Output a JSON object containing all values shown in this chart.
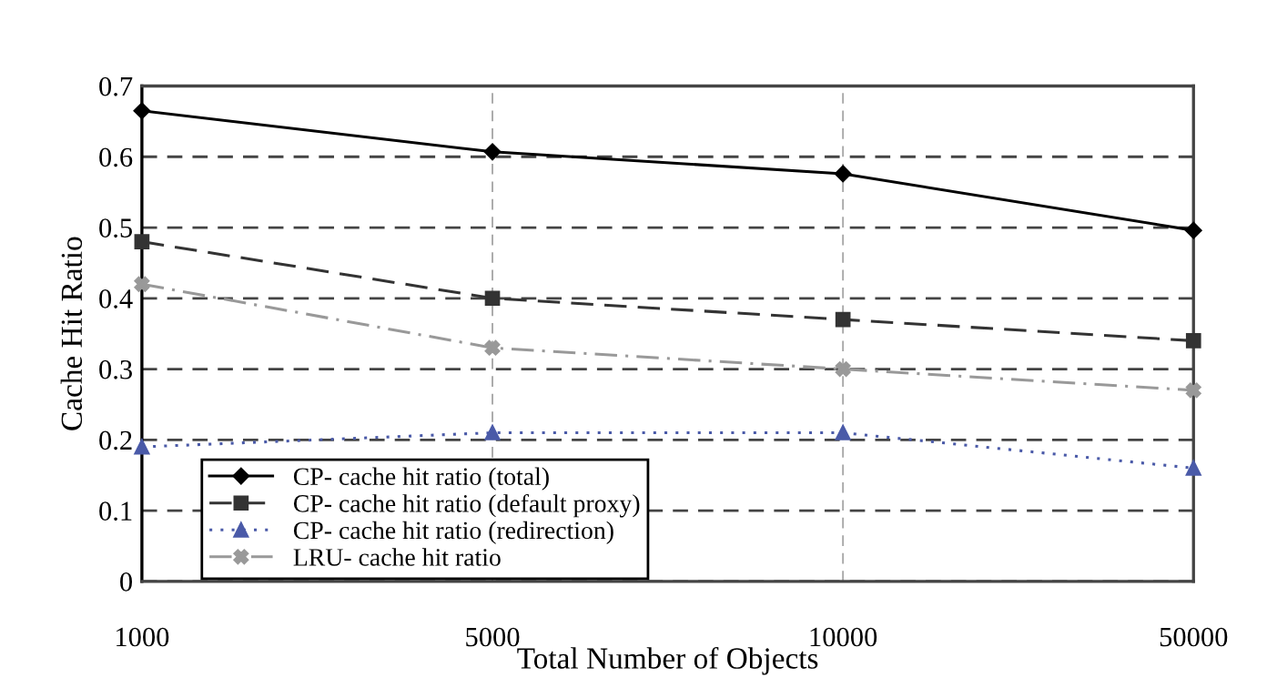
{
  "chart_data": {
    "type": "line",
    "xlabel": "Total Number of Objects",
    "ylabel": "Cache Hit Ratio",
    "categories": [
      "1000",
      "5000",
      "10000",
      "50000"
    ],
    "series": [
      {
        "name": "CP- cache hit ratio (total)",
        "color": "#000000",
        "marker": "diamond",
        "line_style": "solid",
        "values": [
          0.665,
          0.607,
          0.576,
          0.496
        ]
      },
      {
        "name": "CP- cache hit ratio (default proxy)",
        "color": "#333333",
        "marker": "square",
        "line_style": "dashed",
        "values": [
          0.48,
          0.4,
          0.37,
          0.34
        ]
      },
      {
        "name": "CP- cache hit ratio (redirection)",
        "color": "#4a5aa8",
        "marker": "triangle",
        "line_style": "dotted",
        "values": [
          0.19,
          0.21,
          0.21,
          0.16
        ]
      },
      {
        "name": "LRU- cache hit ratio",
        "color": "#999999",
        "marker": "cross",
        "line_style": "dashdot",
        "values": [
          0.42,
          0.33,
          0.3,
          0.27
        ]
      }
    ],
    "ylim": [
      0,
      0.7
    ],
    "yticks": [
      0,
      0.1,
      0.2,
      0.3,
      0.4,
      0.5,
      0.6,
      0.7
    ],
    "grid": true,
    "legend": "bottom left"
  }
}
